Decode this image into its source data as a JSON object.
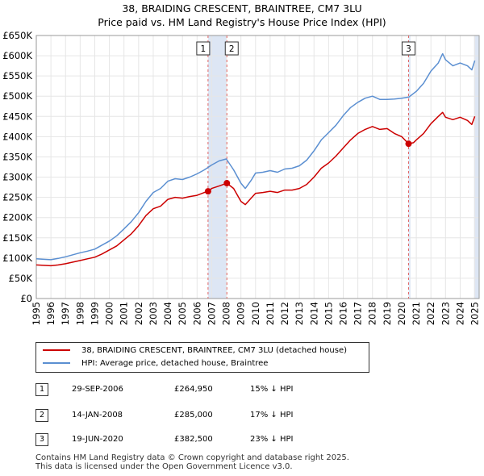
{
  "title_line1": "38, BRAIDING CRESCENT, BRAINTREE, CM7 3LU",
  "title_line2": "Price paid vs. HM Land Registry's House Price Index (HPI)",
  "legend": {
    "property": "38, BRAIDING CRESCENT, BRAINTREE, CM7 3LU (detached house)",
    "hpi": "HPI: Average price, detached house, Braintree"
  },
  "colors": {
    "property": "#cc0000",
    "hpi": "#5b8fd1",
    "band": "#dde6f4",
    "marker_line": "#e06666"
  },
  "transactions": [
    {
      "num": "1",
      "date": "29-SEP-2006",
      "price": "£264,950",
      "pct": "15% ↓ HPI"
    },
    {
      "num": "2",
      "date": "14-JAN-2008",
      "price": "£285,000",
      "pct": "17% ↓ HPI"
    },
    {
      "num": "3",
      "date": "19-JUN-2020",
      "price": "£382,500",
      "pct": "23% ↓ HPI"
    }
  ],
  "footer_line1": "Contains HM Land Registry data © Crown copyright and database right 2025.",
  "footer_line2": "This data is licensed under the Open Government Licence v3.0.",
  "chart_data": {
    "type": "line",
    "title": "38, BRAIDING CRESCENT, BRAINTREE, CM7 3LU",
    "subtitle": "Price paid vs. HM Land Registry's House Price Index (HPI)",
    "xlim": [
      1995,
      2025.3
    ],
    "ylim": [
      0,
      650000
    ],
    "y_ticks": [
      0,
      50000,
      100000,
      150000,
      200000,
      250000,
      300000,
      350000,
      400000,
      450000,
      500000,
      550000,
      600000,
      650000
    ],
    "y_tick_labels": [
      "£0",
      "£50K",
      "£100K",
      "£150K",
      "£200K",
      "£250K",
      "£300K",
      "£350K",
      "£400K",
      "£450K",
      "£500K",
      "£550K",
      "£600K",
      "£650K"
    ],
    "x_ticks": [
      1995,
      1996,
      1997,
      1998,
      1999,
      2000,
      2001,
      2002,
      2003,
      2004,
      2005,
      2006,
      2007,
      2008,
      2009,
      2010,
      2011,
      2012,
      2013,
      2014,
      2015,
      2016,
      2017,
      2018,
      2019,
      2020,
      2021,
      2022,
      2023,
      2024,
      2025
    ],
    "x_tick_labels": [
      "1995",
      "1996",
      "1997",
      "1998",
      "1999",
      "2000",
      "2001",
      "2002",
      "2003",
      "2004",
      "2005",
      "2006",
      "2007",
      "2008",
      "2009",
      "2010",
      "2011",
      "2012",
      "2013",
      "2014",
      "2015",
      "2016",
      "2017",
      "2018",
      "2019",
      "2020",
      "2021",
      "2022",
      "2023",
      "2024",
      "2025"
    ],
    "grid": true,
    "shaded_bands": [
      [
        2006.75,
        2008.04
      ],
      [
        2020.47,
        2020.6
      ],
      [
        2024.95,
        2025.3
      ]
    ],
    "series": [
      {
        "name": "38, BRAIDING CRESCENT, BRAINTREE, CM7 3LU (detached house)",
        "x": [
          1995.0,
          1995.5,
          1996.0,
          1996.5,
          1997.0,
          1997.5,
          1998.0,
          1998.5,
          1999.0,
          1999.5,
          2000.0,
          2000.5,
          2001.0,
          2001.5,
          2002.0,
          2002.5,
          2003.0,
          2003.5,
          2004.0,
          2004.5,
          2005.0,
          2005.5,
          2006.0,
          2006.5,
          2006.75,
          2007.0,
          2007.5,
          2008.04,
          2008.5,
          2009.0,
          2009.3,
          2009.7,
          2010.0,
          2010.5,
          2011.0,
          2011.5,
          2012.0,
          2012.5,
          2013.0,
          2013.5,
          2014.0,
          2014.5,
          2015.0,
          2015.5,
          2016.0,
          2016.5,
          2017.0,
          2017.5,
          2018.0,
          2018.5,
          2019.0,
          2019.5,
          2020.0,
          2020.47,
          2020.8,
          2021.0,
          2021.5,
          2022.0,
          2022.5,
          2022.8,
          2023.0,
          2023.5,
          2024.0,
          2024.5,
          2024.8,
          2025.0
        ],
        "y": [
          83000,
          82000,
          81000,
          83000,
          86000,
          90000,
          94000,
          98000,
          102000,
          110000,
          120000,
          130000,
          145000,
          160000,
          180000,
          205000,
          222000,
          228000,
          245000,
          250000,
          248000,
          252000,
          255000,
          262000,
          264950,
          272000,
          278000,
          285000,
          272000,
          240000,
          232000,
          248000,
          260000,
          262000,
          265000,
          262000,
          268000,
          268000,
          272000,
          282000,
          300000,
          322000,
          335000,
          352000,
          372000,
          392000,
          408000,
          418000,
          425000,
          418000,
          420000,
          408000,
          400000,
          382500,
          385000,
          392000,
          408000,
          432000,
          450000,
          460000,
          448000,
          442000,
          448000,
          440000,
          430000,
          450000
        ]
      },
      {
        "name": "HPI: Average price, detached house, Braintree",
        "x": [
          1995.0,
          1995.5,
          1996.0,
          1996.5,
          1997.0,
          1997.5,
          1998.0,
          1998.5,
          1999.0,
          1999.5,
          2000.0,
          2000.5,
          2001.0,
          2001.5,
          2002.0,
          2002.5,
          2003.0,
          2003.5,
          2004.0,
          2004.5,
          2005.0,
          2005.5,
          2006.0,
          2006.5,
          2007.0,
          2007.5,
          2008.0,
          2008.5,
          2009.0,
          2009.3,
          2009.7,
          2010.0,
          2010.5,
          2011.0,
          2011.5,
          2012.0,
          2012.5,
          2013.0,
          2013.5,
          2014.0,
          2014.5,
          2015.0,
          2015.5,
          2016.0,
          2016.5,
          2017.0,
          2017.5,
          2018.0,
          2018.5,
          2019.0,
          2019.5,
          2020.0,
          2020.5,
          2021.0,
          2021.5,
          2022.0,
          2022.5,
          2022.8,
          2023.0,
          2023.5,
          2024.0,
          2024.5,
          2024.8,
          2025.0
        ],
        "y": [
          98000,
          97000,
          96000,
          99000,
          103000,
          108000,
          113000,
          117000,
          122000,
          132000,
          142000,
          155000,
          172000,
          190000,
          212000,
          240000,
          262000,
          272000,
          290000,
          296000,
          294000,
          300000,
          308000,
          318000,
          330000,
          340000,
          345000,
          318000,
          285000,
          272000,
          292000,
          310000,
          312000,
          316000,
          312000,
          320000,
          322000,
          328000,
          342000,
          365000,
          392000,
          410000,
          428000,
          452000,
          472000,
          485000,
          495000,
          500000,
          492000,
          492000,
          493000,
          495000,
          498000,
          512000,
          532000,
          562000,
          582000,
          605000,
          590000,
          575000,
          582000,
          575000,
          565000,
          588000
        ]
      }
    ],
    "sales": [
      {
        "label": "1",
        "x": 2006.75,
        "y": 264950
      },
      {
        "label": "2",
        "x": 2008.04,
        "y": 285000
      },
      {
        "label": "3",
        "x": 2020.47,
        "y": 382500
      }
    ]
  }
}
